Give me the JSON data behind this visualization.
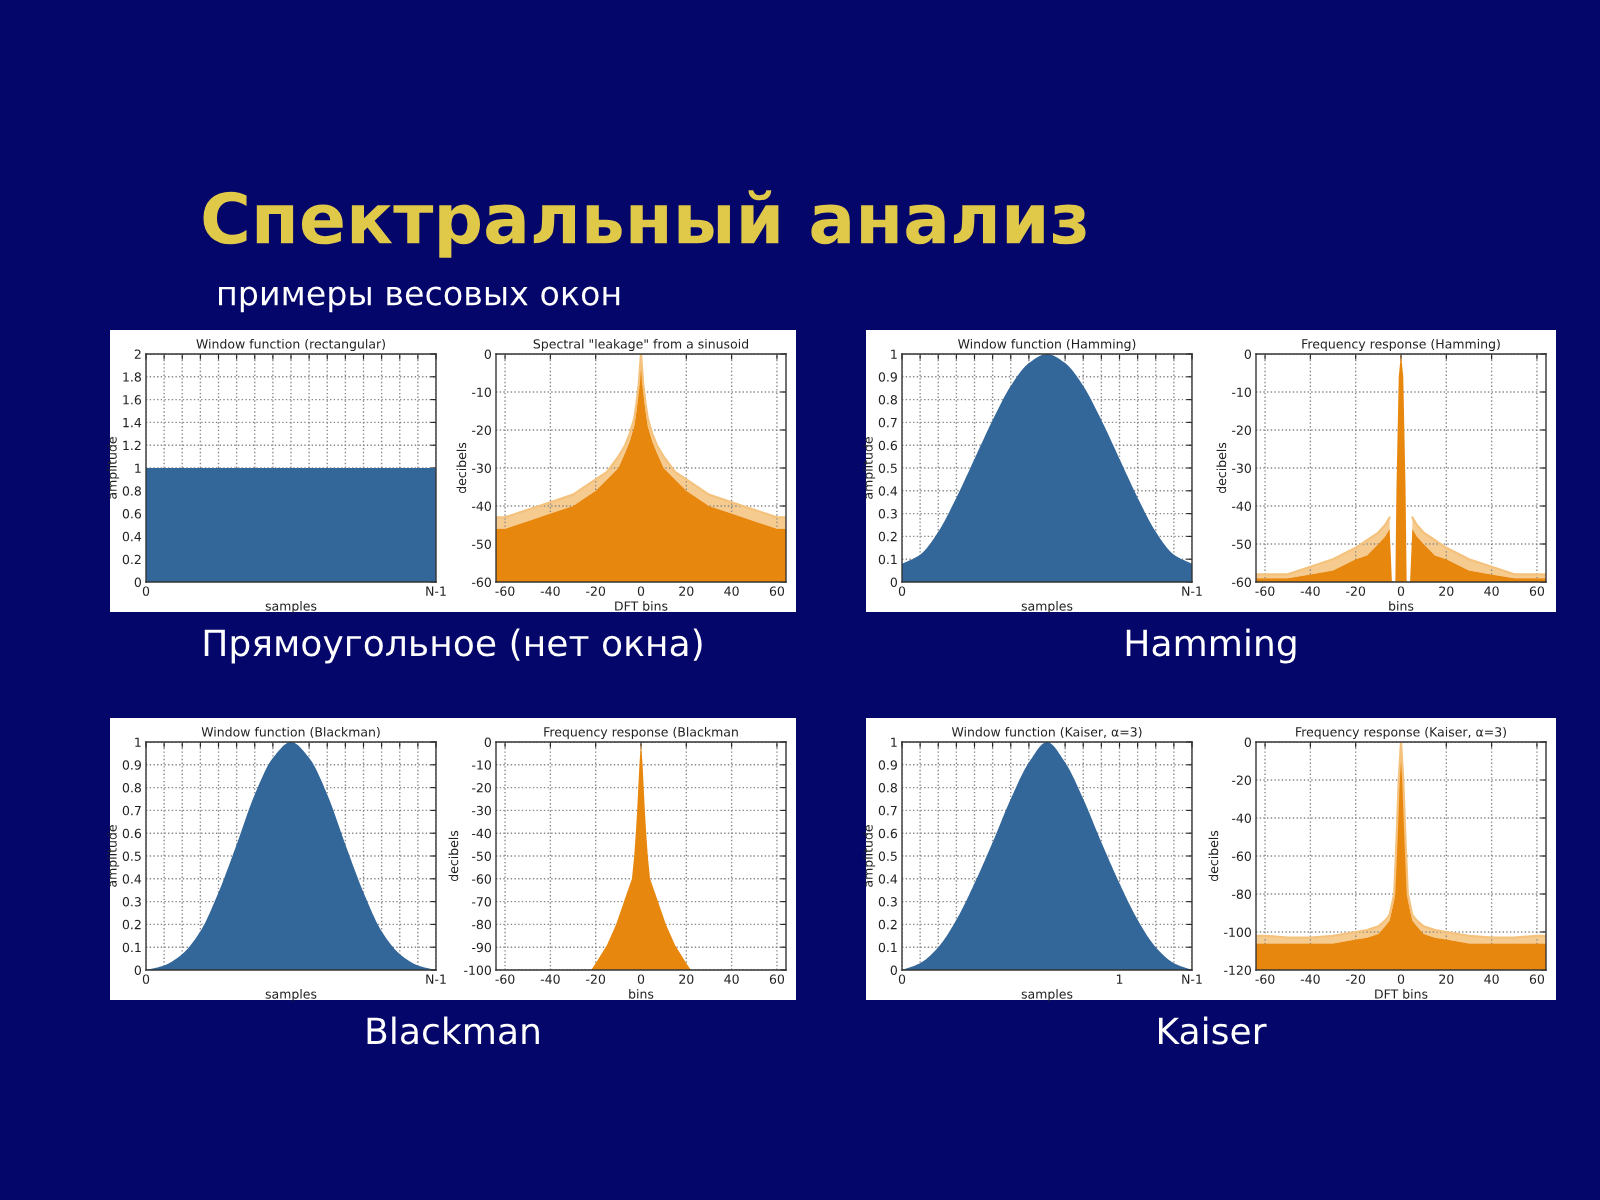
{
  "chart_data": [
    {
      "type": "other",
      "title": "Спектральный анализ",
      "subtitle": "примеры весовых окон"
    },
    {
      "type": "area",
      "title": "Window function (rectangular)",
      "xlabel": "samples",
      "ylabel": "amplitude",
      "categories": [
        "0",
        null,
        null,
        null,
        null,
        null,
        null,
        null,
        null,
        null,
        null,
        null,
        null,
        null,
        null,
        null,
        "N-1"
      ],
      "series": [
        {
          "color": "#336699",
          "values": [
            1,
            1,
            1,
            1,
            1,
            1,
            1,
            1,
            1,
            1,
            1,
            1,
            1,
            1,
            1,
            1,
            1
          ]
        }
      ],
      "ylim": [
        0,
        2
      ],
      "yticks": [
        0,
        0.2,
        0.4,
        0.6,
        0.8,
        1,
        1.2,
        1.4,
        1.6,
        1.8,
        2
      ],
      "grid": true,
      "annotations": [
        "Прямоугольное (нет окна)"
      ]
    },
    {
      "type": "area",
      "title": "Spectral \"leakage\" from a sinusoid",
      "xlabel": "DFT bins",
      "ylabel": "decibels",
      "x": [
        -64,
        -60,
        -50,
        -40,
        -30,
        -20,
        -15,
        -10,
        -7,
        -5,
        -3,
        -2,
        -1,
        0,
        1,
        2,
        3,
        5,
        7,
        10,
        15,
        20,
        30,
        40,
        50,
        60,
        64
      ],
      "series": [
        {
          "color": "#e8870e",
          "values": [
            -46,
            -46,
            -44,
            -42,
            -40,
            -36,
            -33,
            -30,
            -26,
            -23,
            -19,
            -15,
            -9,
            0,
            -9,
            -15,
            -19,
            -23,
            -26,
            -30,
            -33,
            -36,
            -40,
            -42,
            -44,
            -46,
            -46
          ]
        },
        {
          "type": "line",
          "color": "#f4c27c",
          "values": [
            -43,
            -43,
            -41,
            -39,
            -37,
            -33,
            -31,
            -27,
            -24,
            -21,
            -17,
            -13,
            -8,
            0,
            -8,
            -13,
            -17,
            -21,
            -24,
            -27,
            -31,
            -33,
            -37,
            -39,
            -41,
            -43,
            -43
          ],
          "lower": [
            -46,
            -46,
            -44,
            -42,
            -40,
            -36,
            -33,
            -30,
            -26,
            -23,
            -19,
            -15,
            -9,
            0,
            -9,
            -15,
            -19,
            -23,
            -26,
            -30,
            -33,
            -36,
            -40,
            -42,
            -44,
            -46,
            -46
          ],
          "upper": [
            -43,
            -43,
            -41,
            -39,
            -37,
            -33,
            -31,
            -27,
            -24,
            -21,
            -17,
            -13,
            -8,
            0,
            -8,
            -13,
            -17,
            -21,
            -24,
            -27,
            -31,
            -33,
            -37,
            -39,
            -41,
            -43,
            -43
          ]
        }
      ],
      "xlim": [
        -64,
        64
      ],
      "ylim": [
        -60,
        0
      ],
      "xticks": [
        -60,
        -40,
        -20,
        0,
        20,
        40,
        60
      ],
      "yticks": [
        -60,
        -50,
        -40,
        -30,
        -20,
        -10,
        0
      ],
      "grid": true
    },
    {
      "type": "area",
      "title": "Window function (Hamming)",
      "xlabel": "samples",
      "ylabel": "amplitude",
      "categories": [
        "0",
        null,
        null,
        null,
        null,
        null,
        null,
        null,
        null,
        null,
        null,
        null,
        null,
        null,
        null,
        null,
        "N-1"
      ],
      "series": [
        {
          "color": "#336699",
          "values": [
            0.08,
            0.12,
            0.22,
            0.37,
            0.54,
            0.71,
            0.86,
            0.96,
            1,
            0.96,
            0.86,
            0.71,
            0.54,
            0.37,
            0.22,
            0.12,
            0.08
          ]
        }
      ],
      "ylim": [
        0,
        1
      ],
      "yticks": [
        0,
        0.1,
        0.2,
        0.3,
        0.4,
        0.5,
        0.6,
        0.7,
        0.8,
        0.9,
        1
      ],
      "grid": true,
      "annotations": [
        "Hamming"
      ]
    },
    {
      "type": "area",
      "title": "Frequency response (Hamming)",
      "xlabel": "bins",
      "ylabel": "decibels",
      "x": [
        -64,
        -60,
        -50,
        -40,
        -30,
        -20,
        -15,
        -10,
        -7,
        -5,
        -4,
        -2.5,
        -2,
        -1,
        0,
        1,
        2,
        2.5,
        4,
        5,
        7,
        10,
        15,
        20,
        30,
        40,
        50,
        60,
        64
      ],
      "series": [
        {
          "color": "#e8870e",
          "values": [
            -59,
            -59,
            -59,
            -58,
            -57,
            -54,
            -53,
            -50,
            -48,
            -46,
            -60,
            -60,
            -35,
            -6,
            0,
            -6,
            -35,
            -60,
            -60,
            -46,
            -48,
            -50,
            -53,
            -54,
            -57,
            -58,
            -59,
            -59,
            -59
          ]
        },
        {
          "type": "line",
          "color": "#f4c27c",
          "values": [
            -58,
            -58,
            -58,
            -56,
            -54,
            -51,
            -49,
            -47,
            -45,
            -43,
            null,
            null,
            null,
            null,
            null,
            null,
            null,
            null,
            null,
            -43,
            -45,
            -47,
            -49,
            -51,
            -54,
            -56,
            -58,
            -58,
            -58
          ],
          "lower": [
            -59,
            -59,
            -59,
            -58,
            -57,
            -54,
            -53,
            -50,
            -48,
            -46,
            null,
            null,
            null,
            null,
            null,
            null,
            null,
            null,
            null,
            -46,
            -48,
            -50,
            -53,
            -54,
            -57,
            -58,
            -59,
            -59,
            -59
          ],
          "upper": [
            -58,
            -58,
            -58,
            -56,
            -54,
            -51,
            -49,
            -47,
            -45,
            -43,
            null,
            null,
            null,
            null,
            null,
            null,
            null,
            null,
            null,
            -43,
            -45,
            -47,
            -49,
            -51,
            -54,
            -56,
            -58,
            -58,
            -58
          ]
        }
      ],
      "xlim": [
        -64,
        64
      ],
      "ylim": [
        -60,
        0
      ],
      "xticks": [
        -60,
        -40,
        -20,
        0,
        20,
        40,
        60
      ],
      "yticks": [
        -60,
        -50,
        -40,
        -30,
        -20,
        -10,
        0
      ],
      "grid": true
    },
    {
      "type": "area",
      "title": "Window function (Blackman)",
      "xlabel": "samples",
      "ylabel": "amplitude",
      "categories": [
        "0",
        null,
        null,
        null,
        null,
        null,
        null,
        null,
        null,
        null,
        null,
        null,
        null,
        null,
        null,
        null,
        "N-1"
      ],
      "series": [
        {
          "color": "#336699",
          "values": [
            0,
            0.02,
            0.07,
            0.17,
            0.34,
            0.55,
            0.77,
            0.93,
            1,
            0.93,
            0.77,
            0.55,
            0.34,
            0.17,
            0.07,
            0.02,
            0
          ]
        }
      ],
      "ylim": [
        0,
        1
      ],
      "yticks": [
        0,
        0.1,
        0.2,
        0.3,
        0.4,
        0.5,
        0.6,
        0.7,
        0.8,
        0.9,
        1
      ],
      "grid": true,
      "annotations": [
        "Blackman"
      ]
    },
    {
      "type": "area",
      "title": "Frequency response (Blackman",
      "xlabel": "bins",
      "ylabel": "decibels",
      "x": [
        -64,
        -40,
        -22,
        -20,
        -15,
        -11,
        -7.5,
        -4,
        -3,
        -2.3,
        -1.7,
        -1.2,
        -0.7,
        0,
        0.7,
        1.2,
        1.7,
        2.3,
        3,
        4,
        7.5,
        11,
        15,
        20,
        22,
        40,
        64
      ],
      "series": [
        {
          "color": "#e8870e",
          "values": [
            -100,
            -100,
            -100,
            -97,
            -89,
            -80,
            -70,
            -60,
            -50,
            -40,
            -30,
            -20,
            -10,
            0,
            -10,
            -20,
            -30,
            -40,
            -50,
            -60,
            -70,
            -80,
            -89,
            -97,
            -100,
            -100,
            -100
          ]
        }
      ],
      "xlim": [
        -64,
        64
      ],
      "ylim": [
        -100,
        0
      ],
      "xticks": [
        -60,
        -40,
        -20,
        0,
        20,
        40,
        60
      ],
      "yticks": [
        -100,
        -90,
        -80,
        -70,
        -60,
        -50,
        -40,
        -30,
        -20,
        -10,
        0
      ],
      "grid": true
    },
    {
      "type": "area",
      "title": "Window function (Kaiser, α=3)",
      "xlabel": "samples",
      "ylabel": "amplitude",
      "categories": [
        "0",
        null,
        null,
        null,
        null,
        null,
        null,
        null,
        null,
        null,
        null,
        null,
        "1",
        null,
        null,
        null,
        "N-1"
      ],
      "series": [
        {
          "color": "#336699",
          "values": [
            0,
            0.03,
            0.1,
            0.22,
            0.38,
            0.56,
            0.75,
            0.91,
            1,
            0.91,
            0.75,
            0.56,
            0.38,
            0.22,
            0.1,
            0.03,
            0
          ]
        }
      ],
      "ylim": [
        0,
        1
      ],
      "yticks": [
        0,
        0.1,
        0.2,
        0.3,
        0.4,
        0.5,
        0.6,
        0.7,
        0.8,
        0.9,
        1
      ],
      "grid": true,
      "annotations": [
        "Kaiser"
      ]
    },
    {
      "type": "area",
      "title": "Frequency response (Kaiser, α=3)",
      "xlabel": "DFT bins",
      "ylabel": "decibels",
      "x": [
        -64,
        -60,
        -50,
        -40,
        -30,
        -20,
        -15,
        -10,
        -7,
        -5,
        -3,
        -2,
        -1,
        0,
        1,
        2,
        3,
        5,
        7,
        10,
        15,
        20,
        30,
        40,
        50,
        60,
        64
      ],
      "series": [
        {
          "color": "#e8870e",
          "values": [
            -106,
            -106,
            -106,
            -106,
            -106,
            -104,
            -103,
            -101,
            -97,
            -94,
            -83,
            -55,
            -22,
            0,
            -22,
            -55,
            -83,
            -94,
            -97,
            -101,
            -103,
            -104,
            -106,
            -106,
            -106,
            -106,
            -106
          ]
        },
        {
          "type": "line",
          "color": "#f4c27c",
          "values": [
            -102,
            -102,
            -103,
            -103,
            -102,
            -100,
            -99,
            -97,
            -94,
            -91,
            -80,
            -52,
            -20,
            0,
            -20,
            -52,
            -80,
            -91,
            -94,
            -97,
            -99,
            -100,
            -102,
            -103,
            -103,
            -102,
            -102
          ],
          "lower": [
            -106,
            -106,
            -106,
            -106,
            -106,
            -104,
            -103,
            -101,
            -97,
            -94,
            -83,
            -55,
            -22,
            0,
            -22,
            -55,
            -83,
            -94,
            -97,
            -101,
            -103,
            -104,
            -106,
            -106,
            -106,
            -106,
            -106
          ],
          "upper": [
            -102,
            -102,
            -103,
            -103,
            -102,
            -100,
            -99,
            -97,
            -94,
            -91,
            -80,
            -52,
            -20,
            0,
            -20,
            -52,
            -80,
            -91,
            -94,
            -97,
            -99,
            -100,
            -102,
            -103,
            -103,
            -102,
            -102
          ]
        }
      ],
      "xlim": [
        -64,
        64
      ],
      "ylim": [
        -120,
        0
      ],
      "xticks": [
        -60,
        -40,
        -20,
        0,
        20,
        40,
        60
      ],
      "yticks": [
        -120,
        -100,
        -80,
        -60,
        -40,
        -20,
        0
      ],
      "grid": true
    }
  ]
}
